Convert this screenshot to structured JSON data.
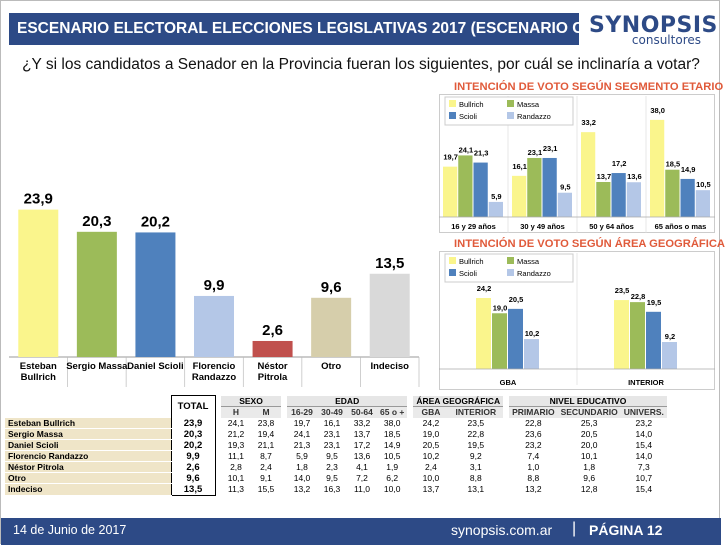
{
  "header": {
    "title": "ESCENARIO ELECTORAL ELECCIONES LEGISLATIVAS 2017 (ESCENARIO C)"
  },
  "logo": {
    "line1": "SYNOPSIS",
    "line2": "consultores"
  },
  "question": "¿Y si los candidatos a Senador en la Provincia fueran los siguientes, por cuál se inclinaría a votar?",
  "colors": {
    "header_bg": "#2d4a86",
    "bullrich": "#faf58c",
    "massa": "#9cbb59",
    "scioli": "#4f81bd",
    "randazzo": "#b4c7e7",
    "pitrola": "#c0504d",
    "otro": "#d6ceab",
    "indeciso": "#d9d9d9",
    "subtitle": "#e05a3a"
  },
  "chart_data": [
    {
      "type": "bar",
      "categories": [
        "Esteban Bullrich",
        "Sergio Massa",
        "Daniel Scioli",
        "Florencio Randazzo",
        "Néstor Pitrola",
        "Otro",
        "Indeciso"
      ],
      "category_lines": [
        [
          "Esteban",
          "Bullrich"
        ],
        [
          "Sergio Massa"
        ],
        [
          "Daniel Scioli"
        ],
        [
          "Florencio",
          "Randazzo"
        ],
        [
          "Néstor",
          "Pitrola"
        ],
        [
          "Otro"
        ],
        [
          "Indeciso"
        ]
      ],
      "values": [
        23.9,
        20.3,
        20.2,
        9.9,
        2.6,
        9.6,
        13.5
      ],
      "labels": [
        "23,9",
        "20,3",
        "20,2",
        "9,9",
        "2,6",
        "9,6",
        "13,5"
      ],
      "bar_colors": [
        "#faf58c",
        "#9cbb59",
        "#4f81bd",
        "#b4c7e7",
        "#c0504d",
        "#d6ceab",
        "#d9d9d9"
      ],
      "ylim": [
        0,
        30
      ]
    },
    {
      "type": "bar",
      "title": "INTENCIÓN DE VOTO SEGÚN SEGMENTO ETARIO",
      "categories": [
        "16 y 29 años",
        "30 y 49 años",
        "50 y 64 años",
        "65 años o mas"
      ],
      "series": [
        {
          "name": "Bullrich",
          "values": [
            19.7,
            16.1,
            33.2,
            38.0
          ],
          "labels": [
            "19,7",
            "16,1",
            "33,2",
            "38,0"
          ]
        },
        {
          "name": "Massa",
          "values": [
            24.1,
            23.1,
            13.7,
            18.5
          ],
          "labels": [
            "24,1",
            "23,1",
            "13,7",
            "18,5"
          ]
        },
        {
          "name": "Scioli",
          "values": [
            21.3,
            23.1,
            17.2,
            14.9
          ],
          "labels": [
            "21,3",
            "23,1",
            "17,2",
            "14,9"
          ]
        },
        {
          "name": "Randazzo",
          "values": [
            5.9,
            9.5,
            13.6,
            10.5
          ],
          "labels": [
            "5,9",
            "9,5",
            "13,6",
            "10,5"
          ]
        }
      ],
      "ylim": [
        0,
        45
      ]
    },
    {
      "type": "bar",
      "title": "INTENCIÓN DE VOTO SEGÚN ÁREA GEOGRÁFICA",
      "categories": [
        "GBA",
        "INTERIOR"
      ],
      "series": [
        {
          "name": "Bullrich",
          "values": [
            24.2,
            23.5
          ],
          "labels": [
            "24,2",
            "23,5"
          ]
        },
        {
          "name": "Massa",
          "values": [
            19.0,
            22.8
          ],
          "labels": [
            "19,0",
            "22,8"
          ]
        },
        {
          "name": "Scioli",
          "values": [
            20.5,
            19.5
          ],
          "labels": [
            "20,5",
            "19,5"
          ]
        },
        {
          "name": "Randazzo",
          "values": [
            10.2,
            9.2
          ],
          "labels": [
            "10,2",
            "9,2"
          ]
        }
      ],
      "ylim": [
        0,
        30
      ]
    },
    {
      "type": "table",
      "total_header": "TOTAL",
      "groups": [
        {
          "label": "SEXO",
          "cols": [
            "H",
            "M"
          ]
        },
        {
          "label": "EDAD",
          "cols": [
            "16-29",
            "30-49",
            "50-64",
            "65 o +"
          ]
        },
        {
          "label": "ÁREA GEOGRÁFICA",
          "cols": [
            "GBA",
            "INTERIOR"
          ]
        },
        {
          "label": "NIVEL EDUCATIVO",
          "cols": [
            "PRIMARIO",
            "SECUNDARIO",
            "UNIVERS."
          ]
        }
      ],
      "rows": [
        {
          "name": "Esteban Bullrich",
          "total": "23,9",
          "values": [
            "24,1",
            "23,8",
            "19,7",
            "16,1",
            "33,2",
            "38,0",
            "24,2",
            "23,5",
            "22,8",
            "25,3",
            "23,2"
          ]
        },
        {
          "name": "Sergio Massa",
          "total": "20,3",
          "values": [
            "21,2",
            "19,4",
            "24,1",
            "23,1",
            "13,7",
            "18,5",
            "19,0",
            "22,8",
            "23,6",
            "20,5",
            "14,0"
          ]
        },
        {
          "name": "Daniel Scioli",
          "total": "20,2",
          "values": [
            "19,3",
            "21,1",
            "21,3",
            "23,1",
            "17,2",
            "14,9",
            "20,5",
            "19,5",
            "23,2",
            "20,0",
            "15,4"
          ]
        },
        {
          "name": "Florencio Randazzo",
          "total": "9,9",
          "values": [
            "11,1",
            "8,7",
            "5,9",
            "9,5",
            "13,6",
            "10,5",
            "10,2",
            "9,2",
            "7,4",
            "10,1",
            "14,0"
          ]
        },
        {
          "name": "Néstor Pitrola",
          "total": "2,6",
          "values": [
            "2,8",
            "2,4",
            "1,8",
            "2,3",
            "4,1",
            "1,9",
            "2,4",
            "3,1",
            "1,0",
            "1,8",
            "7,3"
          ]
        },
        {
          "name": "Otro",
          "total": "9,6",
          "values": [
            "10,1",
            "9,1",
            "14,0",
            "9,5",
            "7,2",
            "6,2",
            "10,0",
            "8,8",
            "8,8",
            "9,6",
            "10,7"
          ]
        },
        {
          "name": "Indeciso",
          "total": "13,5",
          "values": [
            "11,3",
            "15,5",
            "13,2",
            "16,3",
            "11,0",
            "10,0",
            "13,7",
            "13,1",
            "13,2",
            "12,8",
            "15,4"
          ]
        }
      ]
    }
  ],
  "footer": {
    "date": "14 de Junio de 2017",
    "url": "synopsis.com.ar",
    "separator": "|",
    "page": "PÁGINA 12"
  }
}
